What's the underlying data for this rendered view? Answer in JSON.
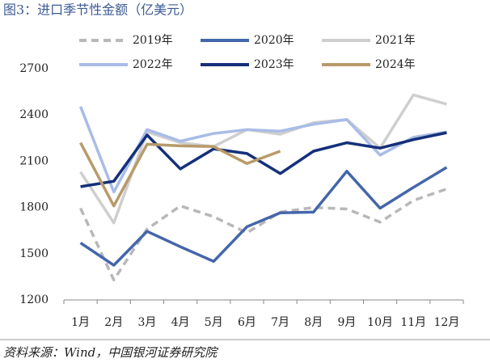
{
  "chart_data": {
    "type": "line",
    "title": "图3：进口季节性金额（亿美元）",
    "source": "资料来源：Wind，中国银河证券研究院",
    "categories": [
      "1月",
      "2月",
      "3月",
      "4月",
      "5月",
      "6月",
      "7月",
      "8月",
      "9月",
      "10月",
      "11月",
      "12月"
    ],
    "ylim": [
      1200,
      2700
    ],
    "yticks": [
      1200,
      1500,
      1800,
      2100,
      2400,
      2700
    ],
    "series": [
      {
        "name": "2019年",
        "color": "#b8b8b8",
        "style": "dashed",
        "values": [
          1795,
          1330,
          1660,
          1810,
          1740,
          1635,
          1770,
          1800,
          1790,
          1705,
          1845,
          1920
        ]
      },
      {
        "name": "2020年",
        "color": "#4466aa",
        "style": "solid",
        "values": [
          1570,
          1425,
          1645,
          1545,
          1450,
          1675,
          1765,
          1770,
          2035,
          1795,
          1930,
          2060
        ]
      },
      {
        "name": "2021年",
        "color": "#cfcfcf",
        "style": "solid",
        "values": [
          2030,
          1700,
          2290,
          2220,
          2195,
          2305,
          2275,
          2350,
          2370,
          2185,
          2530,
          2470
        ]
      },
      {
        "name": "2022年",
        "color": "#a8bce6",
        "style": "solid",
        "values": [
          2455,
          1900,
          2305,
          2230,
          2280,
          2305,
          2295,
          2340,
          2370,
          2140,
          2255,
          2290
        ]
      },
      {
        "name": "2023年",
        "color": "#15307a",
        "style": "solid",
        "values": [
          1935,
          1970,
          2270,
          2050,
          2180,
          2150,
          2020,
          2165,
          2220,
          2185,
          2240,
          2285
        ]
      },
      {
        "name": "2024年",
        "color": "#b89a6a",
        "style": "solid",
        "values": [
          2220,
          1810,
          2210,
          2200,
          2195,
          2085,
          2165,
          null,
          null,
          null,
          null,
          null
        ]
      }
    ]
  }
}
